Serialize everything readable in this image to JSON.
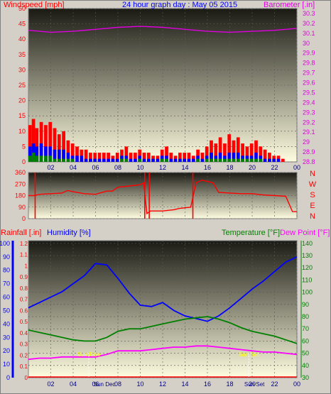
{
  "title": "24 hour graph day : May 05 2015",
  "colors": {
    "wind": "#ff0000",
    "gust_blue": "#0000ff",
    "gust_green": "#008000",
    "baro": "#e000e0",
    "dir": "#ff0000",
    "temp": "#008000",
    "hum": "#0000ff",
    "dew": "#ff00ff",
    "rain_axis": "#ff0000",
    "axis_black": "#000000",
    "bg_top": "#1a1a14",
    "bg_bottom": "#fffde0",
    "sun": "#ffff00",
    "frame": "#d4d0c8"
  },
  "chart_data": [
    {
      "type": "bar",
      "name": "wind-panel",
      "left_label": "Windspeed [mph]",
      "right_label": "Barometer [.in]",
      "x_ticks": [
        "02",
        "04",
        "06",
        "08",
        "10",
        "12",
        "14",
        "16",
        "18",
        "20",
        "22",
        "00"
      ],
      "y_left_ticks": [
        "0",
        "5",
        "10",
        "15",
        "20",
        "25",
        "30",
        "35",
        "40",
        "45",
        "50"
      ],
      "y_left_range": [
        0,
        50
      ],
      "y_right_ticks": [
        "28.8",
        "28.9",
        "29",
        "29.1",
        "29.2",
        "29.3",
        "29.4",
        "29.5",
        "29.6",
        "29.7",
        "29.8",
        "29.9",
        "30",
        "30.1",
        "30.2",
        "30.3"
      ],
      "y_right_range": [
        28.8,
        30.35
      ],
      "wind_segments": [
        {
          "x": [
            0,
            0.3,
            0.6,
            1,
            1.4,
            1.8,
            2.2,
            2.6,
            3,
            3.4,
            3.8,
            4.2,
            4.6,
            5,
            5.4,
            5.8,
            6.2,
            6.6,
            7,
            7.4,
            7.8,
            8.2,
            8.6,
            9,
            9.4,
            9.8,
            10.2,
            10.6,
            11,
            11.4,
            11.8,
            12.2,
            12.6,
            13,
            13.4,
            13.8,
            14.2,
            14.6,
            15,
            15.4,
            15.8,
            16.2,
            16.6,
            17,
            17.4,
            17.8,
            18.2,
            18.6,
            19,
            19.4,
            19.8,
            20.2,
            20.6,
            21,
            21.4,
            21.8,
            22.2,
            22.6,
            23,
            23.4,
            23.8
          ],
          "wind": [
            12,
            14,
            11,
            13,
            12,
            13,
            11,
            9,
            10,
            7,
            6,
            5,
            4,
            4,
            3,
            3,
            3,
            3,
            3,
            2,
            3,
            4,
            5,
            3,
            3,
            4,
            3,
            3,
            2,
            2,
            4,
            5,
            3,
            2,
            3,
            3,
            3,
            2,
            4,
            3,
            5,
            7,
            6,
            8,
            6,
            9,
            7,
            8,
            6,
            5,
            6,
            7,
            5,
            4,
            3,
            2,
            2,
            1,
            0,
            0,
            0
          ],
          "gust_blue": [
            5,
            6,
            5,
            6,
            5,
            5,
            4,
            4,
            4,
            3,
            2,
            2,
            2,
            1,
            1,
            1,
            1,
            1,
            1,
            1,
            1,
            2,
            2,
            1,
            1,
            2,
            1,
            1,
            1,
            1,
            2,
            2,
            1,
            1,
            1,
            1,
            1,
            1,
            2,
            1,
            2,
            3,
            2,
            3,
            2,
            3,
            3,
            3,
            2,
            2,
            2,
            3,
            2,
            1,
            1,
            1,
            1,
            0,
            0,
            0,
            0
          ],
          "gust_green": [
            2,
            3,
            2,
            2,
            2,
            2,
            1,
            1,
            1,
            1,
            1,
            0,
            0,
            0,
            0,
            0,
            0,
            0,
            0,
            0,
            0,
            1,
            1,
            0,
            0,
            1,
            0,
            0,
            0,
            0,
            1,
            1,
            0,
            0,
            0,
            0,
            0,
            0,
            1,
            0,
            1,
            1,
            1,
            1,
            1,
            1,
            1,
            1,
            1,
            1,
            1,
            1,
            1,
            0,
            0,
            0,
            0,
            0,
            0,
            0,
            0
          ]
        }
      ],
      "baro_x": [
        0,
        2,
        4,
        6,
        8,
        10,
        12,
        14,
        16,
        18,
        20,
        22,
        24
      ],
      "baro": [
        30.13,
        30.11,
        30.12,
        30.14,
        30.16,
        30.17,
        30.16,
        30.14,
        30.12,
        30.11,
        30.12,
        30.13,
        30.15
      ]
    },
    {
      "type": "line",
      "name": "direction-panel",
      "left_ticks": [
        "0",
        "90",
        "180",
        "270",
        "360"
      ],
      "right_labels": [
        "N",
        "W",
        "S",
        "E",
        "N"
      ],
      "y_range": [
        0,
        360
      ],
      "x": [
        0,
        0.5,
        1,
        2,
        3,
        3.5,
        4,
        5,
        6,
        7,
        7.5,
        8,
        9,
        10,
        10.3,
        10.6,
        10.9,
        11,
        12,
        13,
        13.5,
        14,
        14.5,
        15,
        15.5,
        16,
        16.5,
        17,
        18,
        19,
        20,
        21,
        22,
        23,
        23.6,
        24
      ],
      "dir": [
        180,
        180,
        190,
        195,
        200,
        220,
        210,
        195,
        190,
        215,
        215,
        245,
        255,
        265,
        280,
        40,
        60,
        60,
        60,
        70,
        80,
        85,
        90,
        280,
        300,
        290,
        280,
        205,
        200,
        195,
        195,
        185,
        180,
        175,
        55,
        55
      ]
    },
    {
      "type": "line",
      "name": "thermo-panel",
      "left_label_rain": "Rainfall [.in]",
      "left_label_hum": "Humidity [%]",
      "right_label_temp": "Temperature [°F]",
      "right_label_dew": "Dew Point [°F]",
      "rain_ticks": [
        "0",
        "0.1",
        "0.2",
        "0.3",
        "0.4",
        "0.5",
        "0.6",
        "0.7",
        "0.8",
        "0.9",
        "1",
        "1.1",
        "1.2"
      ],
      "hum_ticks": [
        "0",
        "10",
        "20",
        "30",
        "40",
        "50",
        "60",
        "70",
        "80",
        "90",
        "100"
      ],
      "temp_ticks": [
        "30",
        "40",
        "50",
        "60",
        "70",
        "80",
        "90",
        "100",
        "110",
        "120",
        "130",
        "140"
      ],
      "x": [
        0,
        1,
        2,
        3,
        4,
        5,
        6,
        7,
        8,
        9,
        10,
        11,
        12,
        13,
        14,
        15,
        16,
        17,
        18,
        19,
        20,
        21,
        22,
        23,
        24
      ],
      "humidity": [
        52,
        56,
        60,
        64,
        70,
        76,
        85,
        84,
        74,
        63,
        54,
        53,
        56,
        50,
        46,
        44,
        42,
        46,
        52,
        59,
        66,
        72,
        79,
        86,
        90
      ],
      "temperature": [
        69,
        67,
        65,
        63,
        61,
        60,
        60,
        63,
        68,
        70,
        70,
        72,
        74,
        76,
        78,
        79,
        80,
        78,
        75,
        71,
        68,
        66,
        64,
        61,
        58
      ],
      "dewpoint": [
        45,
        46,
        46,
        47,
        47,
        47,
        47,
        49,
        52,
        52,
        52,
        53,
        54,
        55,
        55,
        56,
        56,
        55,
        54,
        53,
        52,
        51,
        51,
        50,
        49
      ],
      "sun_labels": [
        {
          "hour": 5.4,
          "text": "Sun Rise"
        },
        {
          "hour": 19.7,
          "text": "Sun Set"
        }
      ],
      "x_label_extras": [
        "Sun Dec",
        "Sun Set"
      ]
    }
  ]
}
